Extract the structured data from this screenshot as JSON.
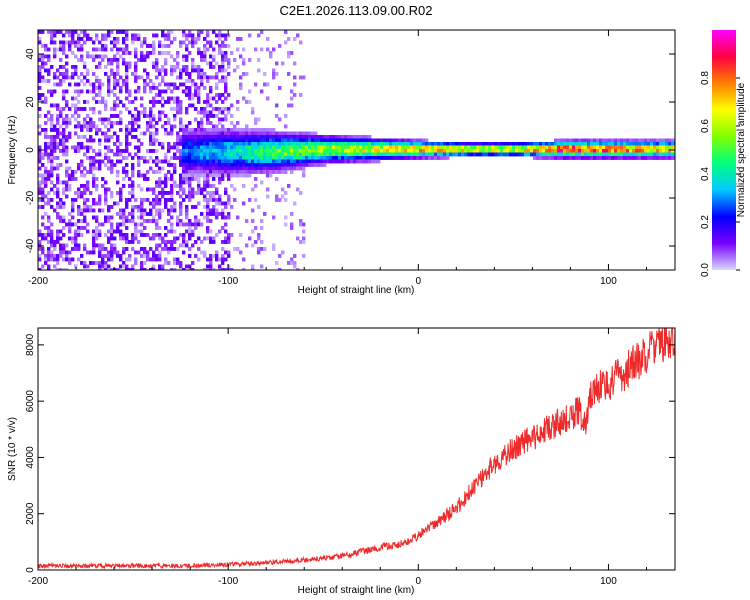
{
  "title": "C2E1.2026.113.09.00.R02",
  "chart_data": [
    {
      "type": "heatmap",
      "xlabel": "Height of straight line (km)",
      "ylabel": "Frequency (Hz)",
      "xlim": [
        -200,
        135
      ],
      "ylim": [
        -50,
        50
      ],
      "xticks": [
        -200,
        -100,
        0,
        100
      ],
      "yticks": [
        -40,
        -20,
        0,
        20,
        40
      ],
      "colorbar": {
        "label": "Normalized spectral amplitude",
        "range": [
          0,
          1
        ],
        "ticks": [
          "0.0",
          "0.2",
          "0.4",
          "0.6",
          "0.8"
        ],
        "stops": [
          "#d9d9ff",
          "#7a00ff",
          "#0000ff",
          "#00c8ff",
          "#00ff7f",
          "#7fff00",
          "#ffff00",
          "#ff7f00",
          "#ff0040",
          "#ff00ff"
        ]
      },
      "trace": {
        "x": [
          -125,
          -100,
          -75,
          -50,
          -25,
          0,
          25,
          50,
          75,
          100,
          135
        ],
        "center_freq": [
          0,
          0,
          0,
          1,
          1,
          1,
          1,
          1,
          1,
          1,
          1
        ],
        "peak_amplitude": [
          0.3,
          0.4,
          0.55,
          0.6,
          0.7,
          0.8,
          0.75,
          0.7,
          0.95,
          0.9,
          0.75
        ],
        "bandwidth": [
          8,
          8,
          7,
          5,
          4,
          3,
          2.5,
          2.5,
          3,
          3,
          3
        ]
      },
      "noise": {
        "dense_until_x": -100,
        "sparse_until_x": -60
      }
    },
    {
      "type": "line",
      "xlabel": "Height of straight line (km)",
      "ylabel": "SNR (10 * v/v)",
      "xlim": [
        -200,
        135
      ],
      "ylim": [
        0,
        8600
      ],
      "xticks": [
        -200,
        -100,
        0,
        100
      ],
      "yticks": [
        0,
        2000,
        4000,
        6000,
        8000
      ],
      "color": "#ee2b2b",
      "series": [
        {
          "x": [
            -200,
            -150,
            -120,
            -100,
            -80,
            -60,
            -40,
            -20,
            -10,
            0,
            10,
            20,
            30,
            40,
            50,
            60,
            70,
            80,
            85,
            88,
            90,
            95,
            100,
            110,
            120,
            135
          ],
          "values": [
            150,
            150,
            150,
            200,
            250,
            350,
            500,
            800,
            900,
            1200,
            1700,
            2200,
            3000,
            3800,
            4300,
            4700,
            5100,
            5400,
            5700,
            5000,
            6200,
            6500,
            6600,
            7100,
            7700,
            8300
          ]
        }
      ]
    }
  ]
}
